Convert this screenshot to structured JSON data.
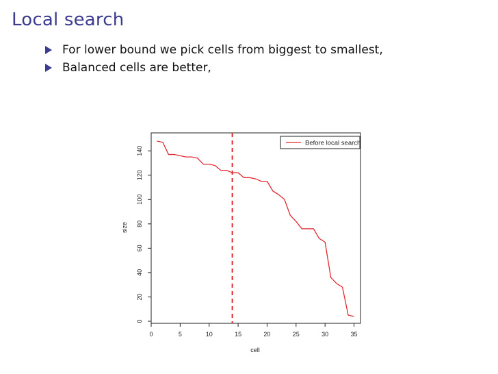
{
  "slide": {
    "title": "Local search",
    "bullets": [
      "For lower bound we pick cells from biggest to smallest,",
      "Balanced cells are better,"
    ]
  },
  "colors": {
    "accent": "#3b3b8f",
    "series": "#e0282e",
    "marker_line": "#e0282e"
  },
  "chart_data": {
    "type": "line",
    "xlabel": "cell",
    "ylabel": "size",
    "xlim": [
      0,
      36
    ],
    "ylim": [
      0,
      148
    ],
    "xticks": [
      0,
      5,
      10,
      15,
      20,
      25,
      30,
      35
    ],
    "yticks": [
      0,
      20,
      40,
      60,
      80,
      100,
      120,
      140
    ],
    "legend_position": "top-right",
    "vline": {
      "x": 14,
      "style": "dashed"
    },
    "series": [
      {
        "name": "Before local search",
        "x": [
          1,
          2,
          3,
          4,
          5,
          6,
          7,
          8,
          9,
          10,
          11,
          12,
          13,
          14,
          15,
          16,
          17,
          18,
          19,
          20,
          21,
          22,
          23,
          24,
          25,
          26,
          27,
          28,
          29,
          30,
          31,
          32,
          33,
          34,
          35
        ],
        "y": [
          148,
          147,
          137,
          137,
          136,
          135,
          135,
          134,
          129,
          129,
          128,
          124,
          124,
          122,
          122,
          118,
          118,
          117,
          115,
          115,
          107,
          104,
          100,
          87,
          82,
          76,
          76,
          76,
          68,
          65,
          36,
          31,
          28,
          5,
          4
        ]
      }
    ]
  }
}
